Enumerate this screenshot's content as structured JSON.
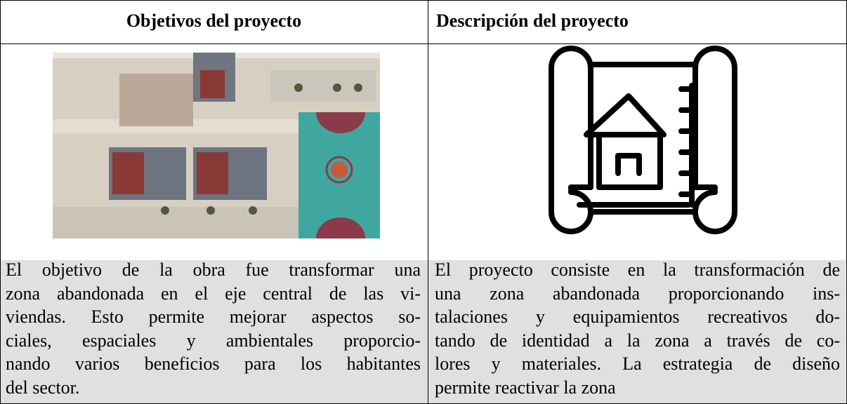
{
  "table": {
    "header": [
      "Objetivos del proyecto",
      "Descripción del proyecto"
    ],
    "rows": [
      [
        {
          "lines": [
            "El objetivo de la obra fue transformar una",
            "zona abandonada en el eje central de las vi-",
            "viendas. Esto permite mejorar aspectos so-",
            "ciales, espaciales y ambientales proporcio-",
            "nando varios beneficios para los habitantes",
            "del sector."
          ]
        },
        {
          "lines": [
            "El proyecto consiste en la transformación de",
            "una zona abandonada proporcionando ins-",
            "talaciones y equipamientos recreativos do-",
            "tando de identidad a la zona a través de co-",
            "lores y materiales. La estrategia de diseño",
            "permite reactivar la zona"
          ]
        }
      ]
    ]
  }
}
